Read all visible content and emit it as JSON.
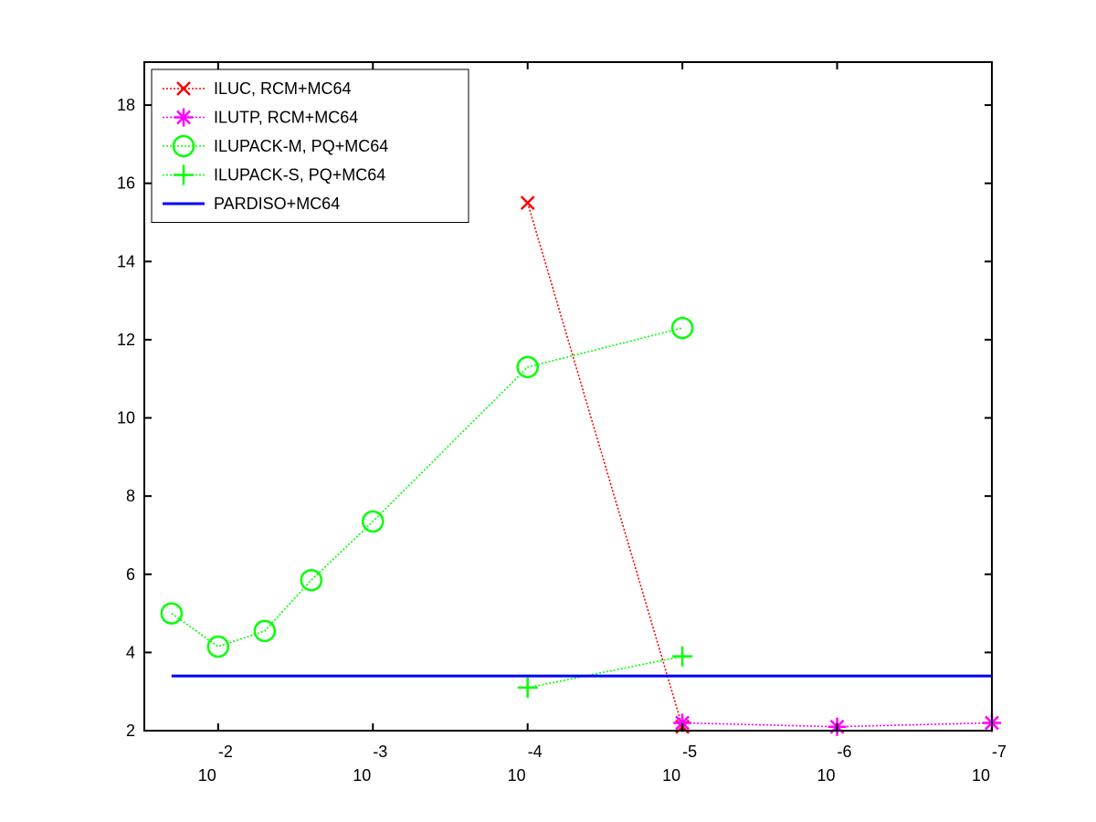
{
  "chart_data": {
    "type": "line",
    "title": "",
    "xlabel": "",
    "ylabel": "",
    "x_scale": "log-reversed",
    "xlim": [
      0.03,
      1e-07
    ],
    "ylim": [
      2,
      19.1
    ],
    "grid": false,
    "legend_position": "top-left",
    "x_ticks": [
      {
        "value": 0.01,
        "base": "10",
        "exp": "-2"
      },
      {
        "value": 0.001,
        "base": "10",
        "exp": "-3"
      },
      {
        "value": 0.0001,
        "base": "10",
        "exp": "-4"
      },
      {
        "value": 1e-05,
        "base": "10",
        "exp": "-5"
      },
      {
        "value": 1e-06,
        "base": "10",
        "exp": "-6"
      },
      {
        "value": 1e-07,
        "base": "10",
        "exp": "-7"
      }
    ],
    "y_ticks": [
      2,
      4,
      6,
      8,
      10,
      12,
      14,
      16,
      18
    ],
    "series": [
      {
        "name": "ILUC, RCM+MC64",
        "color": "#ff0000",
        "marker": "x",
        "line_style": "dotted",
        "x": [
          0.0001,
          1e-05
        ],
        "y": [
          15.5,
          2.1
        ]
      },
      {
        "name": "ILUTP, RCM+MC64",
        "color": "#ff00ff",
        "marker": "asterisk",
        "line_style": "dotted",
        "x": [
          1e-05,
          1e-06,
          1e-07
        ],
        "y": [
          2.2,
          2.1,
          2.2
        ]
      },
      {
        "name": "ILUPACK-M, PQ+MC64",
        "color": "#00ff00",
        "marker": "circle",
        "line_style": "dotted",
        "x": [
          0.02,
          0.01,
          0.005,
          0.0025,
          0.001,
          0.0001,
          1e-05
        ],
        "y": [
          5.0,
          4.15,
          4.55,
          5.85,
          7.35,
          11.3,
          12.3
        ]
      },
      {
        "name": "ILUPACK-S, PQ+MC64",
        "color": "#00ff00",
        "marker": "plus",
        "line_style": "dotted",
        "x": [
          0.0001,
          1e-05
        ],
        "y": [
          3.1,
          3.9
        ]
      },
      {
        "name": "PARDISO+MC64",
        "color": "#0000ff",
        "marker": "none",
        "line_style": "solid",
        "x": [
          0.02,
          1e-07
        ],
        "y": [
          3.4,
          3.4
        ]
      }
    ]
  }
}
